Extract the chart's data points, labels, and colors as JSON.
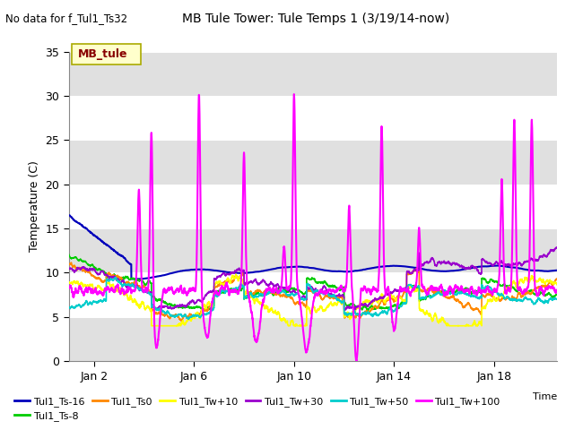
{
  "title": "MB Tule Tower: Tule Temps 1 (3/19/14-now)",
  "top_left_text": "No data for f_Tul1_Ts32",
  "xlabel": "Time",
  "ylabel": "Temperature (C)",
  "ylim": [
    0,
    35
  ],
  "yticks": [
    0,
    5,
    10,
    15,
    20,
    25,
    30,
    35
  ],
  "xtick_labels": [
    "Jan 2",
    "Jan 6",
    "Jan 10",
    "Jan 14",
    "Jan 18"
  ],
  "xtick_positions": [
    1,
    5,
    9,
    13,
    17
  ],
  "legend_box_label": "MB_tule",
  "legend_box_color": "#FFFFCC",
  "legend_box_edge_color": "#AAAA00",
  "legend_box_text_color": "#880000",
  "bg_color": "#E0E0E0",
  "series": [
    {
      "label": "Tul1_Ts-16",
      "color": "#0000BB",
      "lw": 1.5
    },
    {
      "label": "Tul1_Ts-8",
      "color": "#00CC00",
      "lw": 1.2
    },
    {
      "label": "Tul1_Ts0",
      "color": "#FF8800",
      "lw": 1.2
    },
    {
      "label": "Tul1_Tw+10",
      "color": "#FFFF00",
      "lw": 1.2
    },
    {
      "label": "Tul1_Tw+30",
      "color": "#9900CC",
      "lw": 1.2
    },
    {
      "label": "Tul1_Tw+50",
      "color": "#00CCCC",
      "lw": 1.2
    },
    {
      "label": "Tul1_Tw+100",
      "color": "#FF00FF",
      "lw": 1.5
    }
  ],
  "spike_up_positions": [
    2.8,
    3.3,
    5.2,
    7.0,
    8.6,
    9.0,
    11.2,
    12.5,
    14.0,
    17.3,
    17.8,
    18.5
  ],
  "spike_up_heights": [
    19.5,
    27.5,
    30.5,
    23.5,
    13.0,
    30.0,
    17.5,
    27.0,
    15.0,
    20.0,
    27.5,
    27.5
  ]
}
